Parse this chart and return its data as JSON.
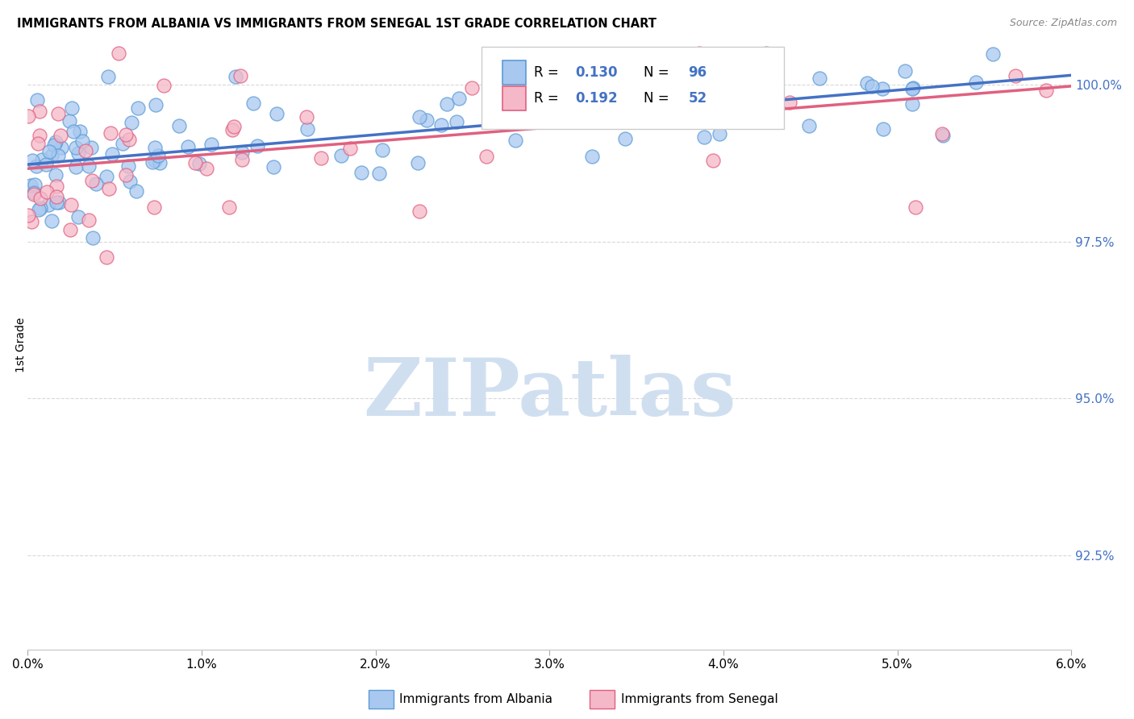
{
  "title": "IMMIGRANTS FROM ALBANIA VS IMMIGRANTS FROM SENEGAL 1ST GRADE CORRELATION CHART",
  "source": "Source: ZipAtlas.com",
  "ylabel": "1st Grade",
  "ytick_labels": [
    "92.5%",
    "95.0%",
    "97.5%",
    "100.0%"
  ],
  "ytick_values": [
    0.925,
    0.95,
    0.975,
    1.0
  ],
  "xlim": [
    0.0,
    0.06
  ],
  "ylim": [
    0.91,
    1.007
  ],
  "legend_R1": "0.130",
  "legend_N1": "96",
  "legend_R2": "0.192",
  "legend_N2": "52",
  "blue_fill": "#a8c8f0",
  "blue_edge": "#5b9bd5",
  "pink_fill": "#f5b8c8",
  "pink_edge": "#e06080",
  "trend_blue": "#4472c4",
  "trend_pink": "#e06080",
  "legend_val_color": "#4472c4",
  "watermark_color": "#d0dff0",
  "background_color": "#ffffff",
  "grid_color": "#d8d8d8",
  "xtick_labels": [
    "0.0%",
    "1.0%",
    "2.0%",
    "3.0%",
    "4.0%",
    "5.0%",
    "6.0%"
  ],
  "xtick_values": [
    0.0,
    0.01,
    0.02,
    0.03,
    0.04,
    0.05,
    0.06
  ]
}
